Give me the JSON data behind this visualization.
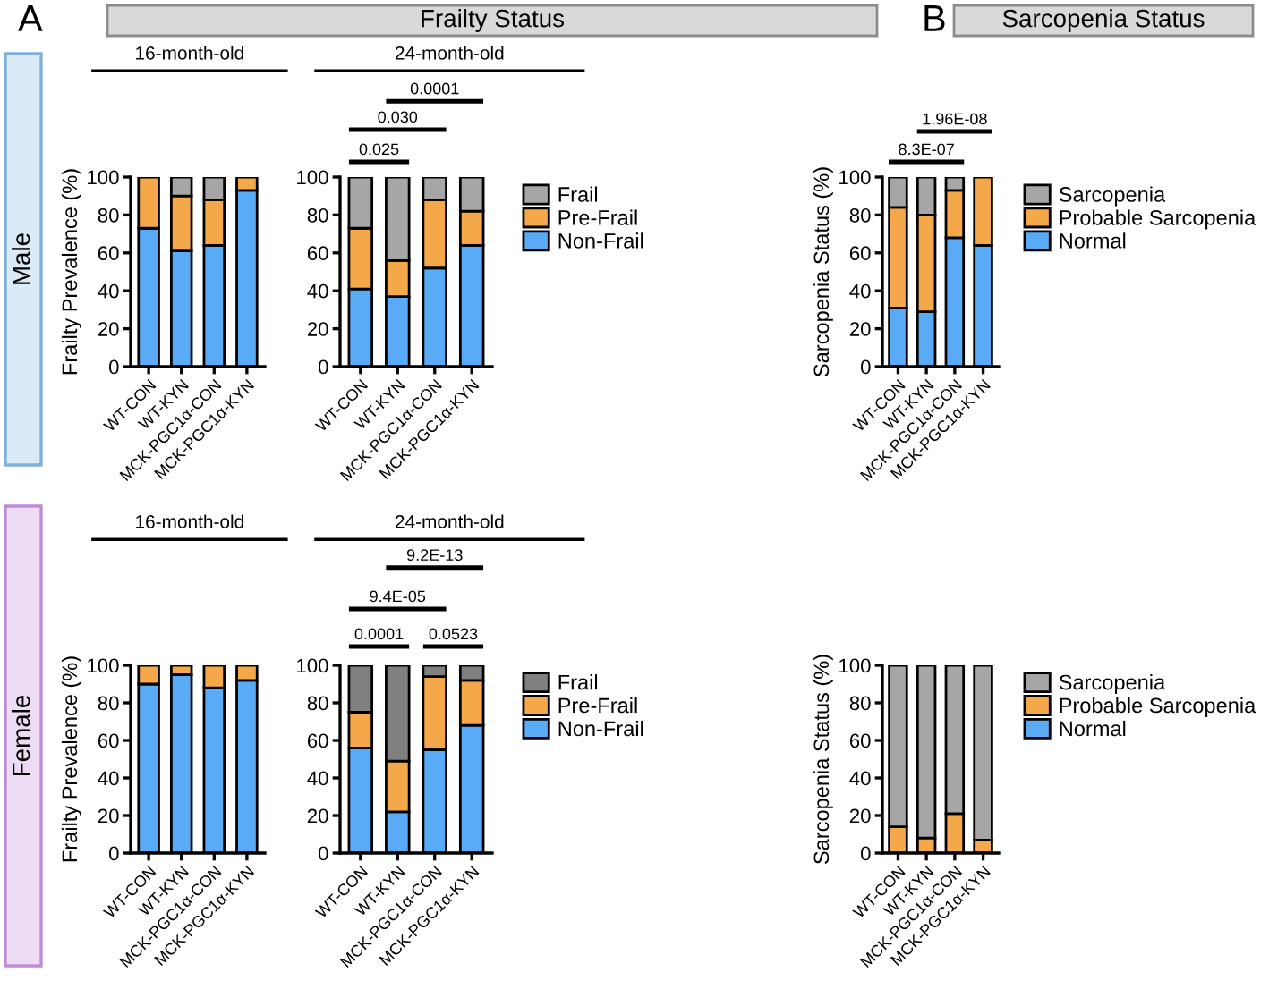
{
  "chart_data": [
    {
      "type": "bar",
      "stacked": true,
      "title": "16-month-old",
      "ylabel": "Frailty Prevalence (%)",
      "categories": [
        "WT-CON",
        "WT-KYN",
        "MCK-PGC1α-CON",
        "MCK-PGC1α-KYN"
      ],
      "ylim": [
        0,
        100
      ],
      "yticks": [
        0,
        20,
        40,
        60,
        80,
        100
      ],
      "annotations": [
        "A",
        "Frailty Status",
        "Male"
      ],
      "series": [
        {
          "color": "#5aabf5",
          "values": [
            73,
            61,
            64,
            93
          ]
        },
        {
          "color": "#f5a849",
          "values": [
            27,
            29,
            24,
            7
          ]
        },
        {
          "color": "#a6a6a6",
          "values": [
            null,
            10,
            12,
            null
          ]
        }
      ]
    },
    {
      "type": "bar",
      "stacked": true,
      "title": "24-month-old",
      "categories": [
        "WT-CON",
        "WT-KYN",
        "MCK-PGC1α-CON",
        "MCK-PGC1α-KYN"
      ],
      "ylim": [
        0,
        100
      ],
      "yticks": [
        0,
        20,
        40,
        60,
        80,
        100
      ],
      "legend": "right",
      "annotations": [
        "0.025",
        "0.030",
        "0.0001"
      ],
      "series": [
        {
          "name": "Non-Frail",
          "color": "#5aabf5",
          "values": [
            41,
            37,
            52,
            64
          ]
        },
        {
          "name": "Pre-Frail",
          "color": "#f5a849",
          "values": [
            32,
            19,
            36,
            18
          ]
        },
        {
          "name": "Frail",
          "color": "#a6a6a6",
          "values": [
            27,
            44,
            12,
            18
          ]
        }
      ]
    },
    {
      "type": "bar",
      "stacked": true,
      "ylabel": "Sarcopenia Status (%)",
      "categories": [
        "WT-CON",
        "WT-KYN",
        "MCK-PGC1α-CON",
        "MCK-PGC1α-KYN"
      ],
      "ylim": [
        0,
        100
      ],
      "yticks": [
        0,
        20,
        40,
        60,
        80,
        100
      ],
      "legend": "right",
      "annotations": [
        "B",
        "Sarcopenia Status",
        "8.3E-07",
        "1.96E-08"
      ],
      "series": [
        {
          "name": "Normal",
          "color": "#5aabf5",
          "values": [
            31,
            29,
            68,
            64
          ]
        },
        {
          "name": "Probable Sarcopenia",
          "color": "#f5a849",
          "values": [
            53,
            51,
            25,
            36
          ]
        },
        {
          "name": "Sarcopenia",
          "color": "#a6a6a6",
          "values": [
            16,
            20,
            7,
            null
          ]
        }
      ]
    },
    {
      "type": "bar",
      "stacked": true,
      "title": "16-month-old",
      "ylabel": "Frailty Prevalence (%)",
      "categories": [
        "WT-CON",
        "WT-KYN",
        "MCK-PGC1α-CON",
        "MCK-PGC1α-KYN"
      ],
      "ylim": [
        0,
        100
      ],
      "yticks": [
        0,
        20,
        40,
        60,
        80,
        100
      ],
      "annotations": [
        "Female"
      ],
      "series": [
        {
          "color": "#5aabf5",
          "values": [
            90,
            95,
            88,
            92
          ]
        },
        {
          "color": "#f5a849",
          "values": [
            10,
            5,
            12,
            8
          ]
        },
        {
          "color": "#808080",
          "values": [
            null,
            null,
            null,
            null
          ]
        }
      ]
    },
    {
      "type": "bar",
      "stacked": true,
      "title": "24-month-old",
      "categories": [
        "WT-CON",
        "WT-KYN",
        "MCK-PGC1α-CON",
        "MCK-PGC1α-KYN"
      ],
      "ylim": [
        0,
        100
      ],
      "yticks": [
        0,
        20,
        40,
        60,
        80,
        100
      ],
      "legend": "right",
      "annotations": [
        "0.0001",
        "0.0523",
        "9.4E-05",
        "9.2E-13"
      ],
      "series": [
        {
          "name": "Non-Frail",
          "color": "#5aabf5",
          "values": [
            56,
            22,
            55,
            68
          ]
        },
        {
          "name": "Pre-Frail",
          "color": "#f5a849",
          "values": [
            19,
            27,
            39,
            24
          ]
        },
        {
          "name": "Frail",
          "color": "#808080",
          "values": [
            25,
            51,
            6,
            8
          ]
        }
      ]
    },
    {
      "type": "bar",
      "stacked": true,
      "ylabel": "Sarcopenia Status (%)",
      "categories": [
        "WT-CON",
        "WT-KYN",
        "MCK-PGC1α-CON",
        "MCK-PGC1α-KYN"
      ],
      "ylim": [
        0,
        100
      ],
      "yticks": [
        0,
        20,
        40,
        60,
        80,
        100
      ],
      "legend": "right",
      "series": [
        {
          "name": "Normal",
          "color": "#5aabf5",
          "values": [
            null,
            null,
            null,
            null
          ]
        },
        {
          "name": "Probable Sarcopenia",
          "color": "#f5a849",
          "values": [
            14,
            8,
            21,
            7
          ]
        },
        {
          "name": "Sarcopenia",
          "color": "#a6a6a6",
          "values": [
            86,
            92,
            79,
            93
          ]
        }
      ]
    }
  ]
}
